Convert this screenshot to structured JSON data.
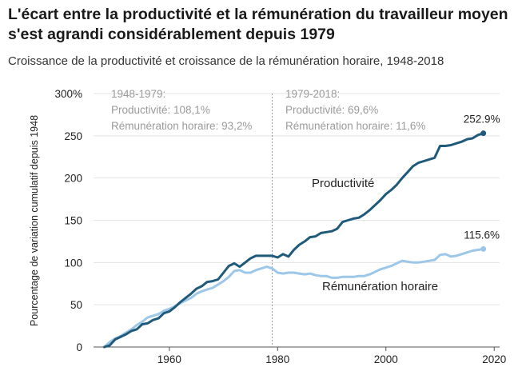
{
  "chart_data": {
    "type": "line",
    "title": "L'écart entre la productivité et la rémunération du travailleur moyen s'est agrandi considérablement depuis 1979",
    "subtitle": "Croissance de la productivité et croissance de la rémunération horaire, 1948-2018",
    "ylabel": "Pourcentage de variation cumulatif depuis 1948",
    "xlabel": "",
    "xlim": [
      1946,
      2021
    ],
    "ylim": [
      0,
      300
    ],
    "x_ticks": [
      "1960",
      "1980",
      "2000",
      "2020"
    ],
    "y_ticks": [
      "0",
      "50",
      "100",
      "150",
      "200",
      "250",
      "300%"
    ],
    "grid": "horizontal",
    "reference_line_year": 1979,
    "annotations": [
      {
        "id": "period1",
        "lines": [
          "1948-1979:",
          "Productivité: 108,1%",
          "Rémunération horaire: 93,2%"
        ]
      },
      {
        "id": "period2",
        "lines": [
          "1979-2018:",
          "Productivité: 69,6%",
          "Rémunération horaire: 11,6%"
        ]
      }
    ],
    "series": [
      {
        "name": "Productivité",
        "color": "#1f5a7a",
        "end_label": "252.9%",
        "x": [
          1948,
          1949,
          1950,
          1951,
          1952,
          1953,
          1954,
          1955,
          1956,
          1957,
          1958,
          1959,
          1960,
          1961,
          1962,
          1963,
          1964,
          1965,
          1966,
          1967,
          1968,
          1969,
          1970,
          1971,
          1972,
          1973,
          1974,
          1975,
          1976,
          1977,
          1978,
          1979,
          1980,
          1981,
          1982,
          1983,
          1984,
          1985,
          1986,
          1987,
          1988,
          1989,
          1990,
          1991,
          1992,
          1993,
          1994,
          1995,
          1996,
          1997,
          1998,
          1999,
          2000,
          2001,
          2002,
          2003,
          2004,
          2005,
          2006,
          2007,
          2008,
          2009,
          2010,
          2011,
          2012,
          2013,
          2014,
          2015,
          2016,
          2017,
          2018
        ],
        "y": [
          0,
          2,
          9,
          12,
          15,
          19,
          21,
          27,
          28,
          32,
          34,
          40,
          42,
          47,
          53,
          58,
          63,
          69,
          72,
          77,
          78,
          80,
          88,
          96,
          99,
          95,
          100,
          105,
          108,
          108,
          108,
          108,
          106,
          110,
          107,
          115,
          121,
          125,
          130,
          131,
          135,
          136,
          137,
          140,
          148,
          150,
          152,
          153,
          157,
          162,
          168,
          174,
          181,
          186,
          192,
          200,
          207,
          214,
          218,
          220,
          222,
          224,
          238,
          238,
          239,
          241,
          243,
          246,
          247,
          251,
          253
        ]
      },
      {
        "name": "Rémunération horaire",
        "color": "#9cc7e8",
        "end_label": "115.6%",
        "x": [
          1948,
          1949,
          1950,
          1951,
          1952,
          1953,
          1954,
          1955,
          1956,
          1957,
          1958,
          1959,
          1960,
          1961,
          1962,
          1963,
          1964,
          1965,
          1966,
          1967,
          1968,
          1969,
          1970,
          1971,
          1972,
          1973,
          1974,
          1975,
          1976,
          1977,
          1978,
          1979,
          1980,
          1981,
          1982,
          1983,
          1984,
          1985,
          1986,
          1987,
          1988,
          1989,
          1990,
          1991,
          1992,
          1993,
          1994,
          1995,
          1996,
          1997,
          1998,
          1999,
          2000,
          2001,
          2002,
          2003,
          2004,
          2005,
          2006,
          2007,
          2008,
          2009,
          2010,
          2011,
          2012,
          2013,
          2014,
          2015,
          2016,
          2017,
          2018
        ],
        "y": [
          0,
          6,
          10,
          13,
          17,
          21,
          26,
          30,
          35,
          37,
          39,
          43,
          45,
          48,
          52,
          55,
          58,
          63,
          66,
          68,
          70,
          74,
          78,
          83,
          90,
          91,
          88,
          88,
          91,
          93,
          95,
          93,
          88,
          87,
          88,
          88,
          87,
          86,
          87,
          85,
          84,
          84,
          82,
          82,
          83,
          83,
          83,
          84,
          84,
          86,
          89,
          92,
          94,
          96,
          99,
          102,
          101,
          100,
          100,
          101,
          102,
          103,
          109,
          110,
          107,
          108,
          110,
          112,
          114,
          115,
          116
        ]
      }
    ]
  }
}
